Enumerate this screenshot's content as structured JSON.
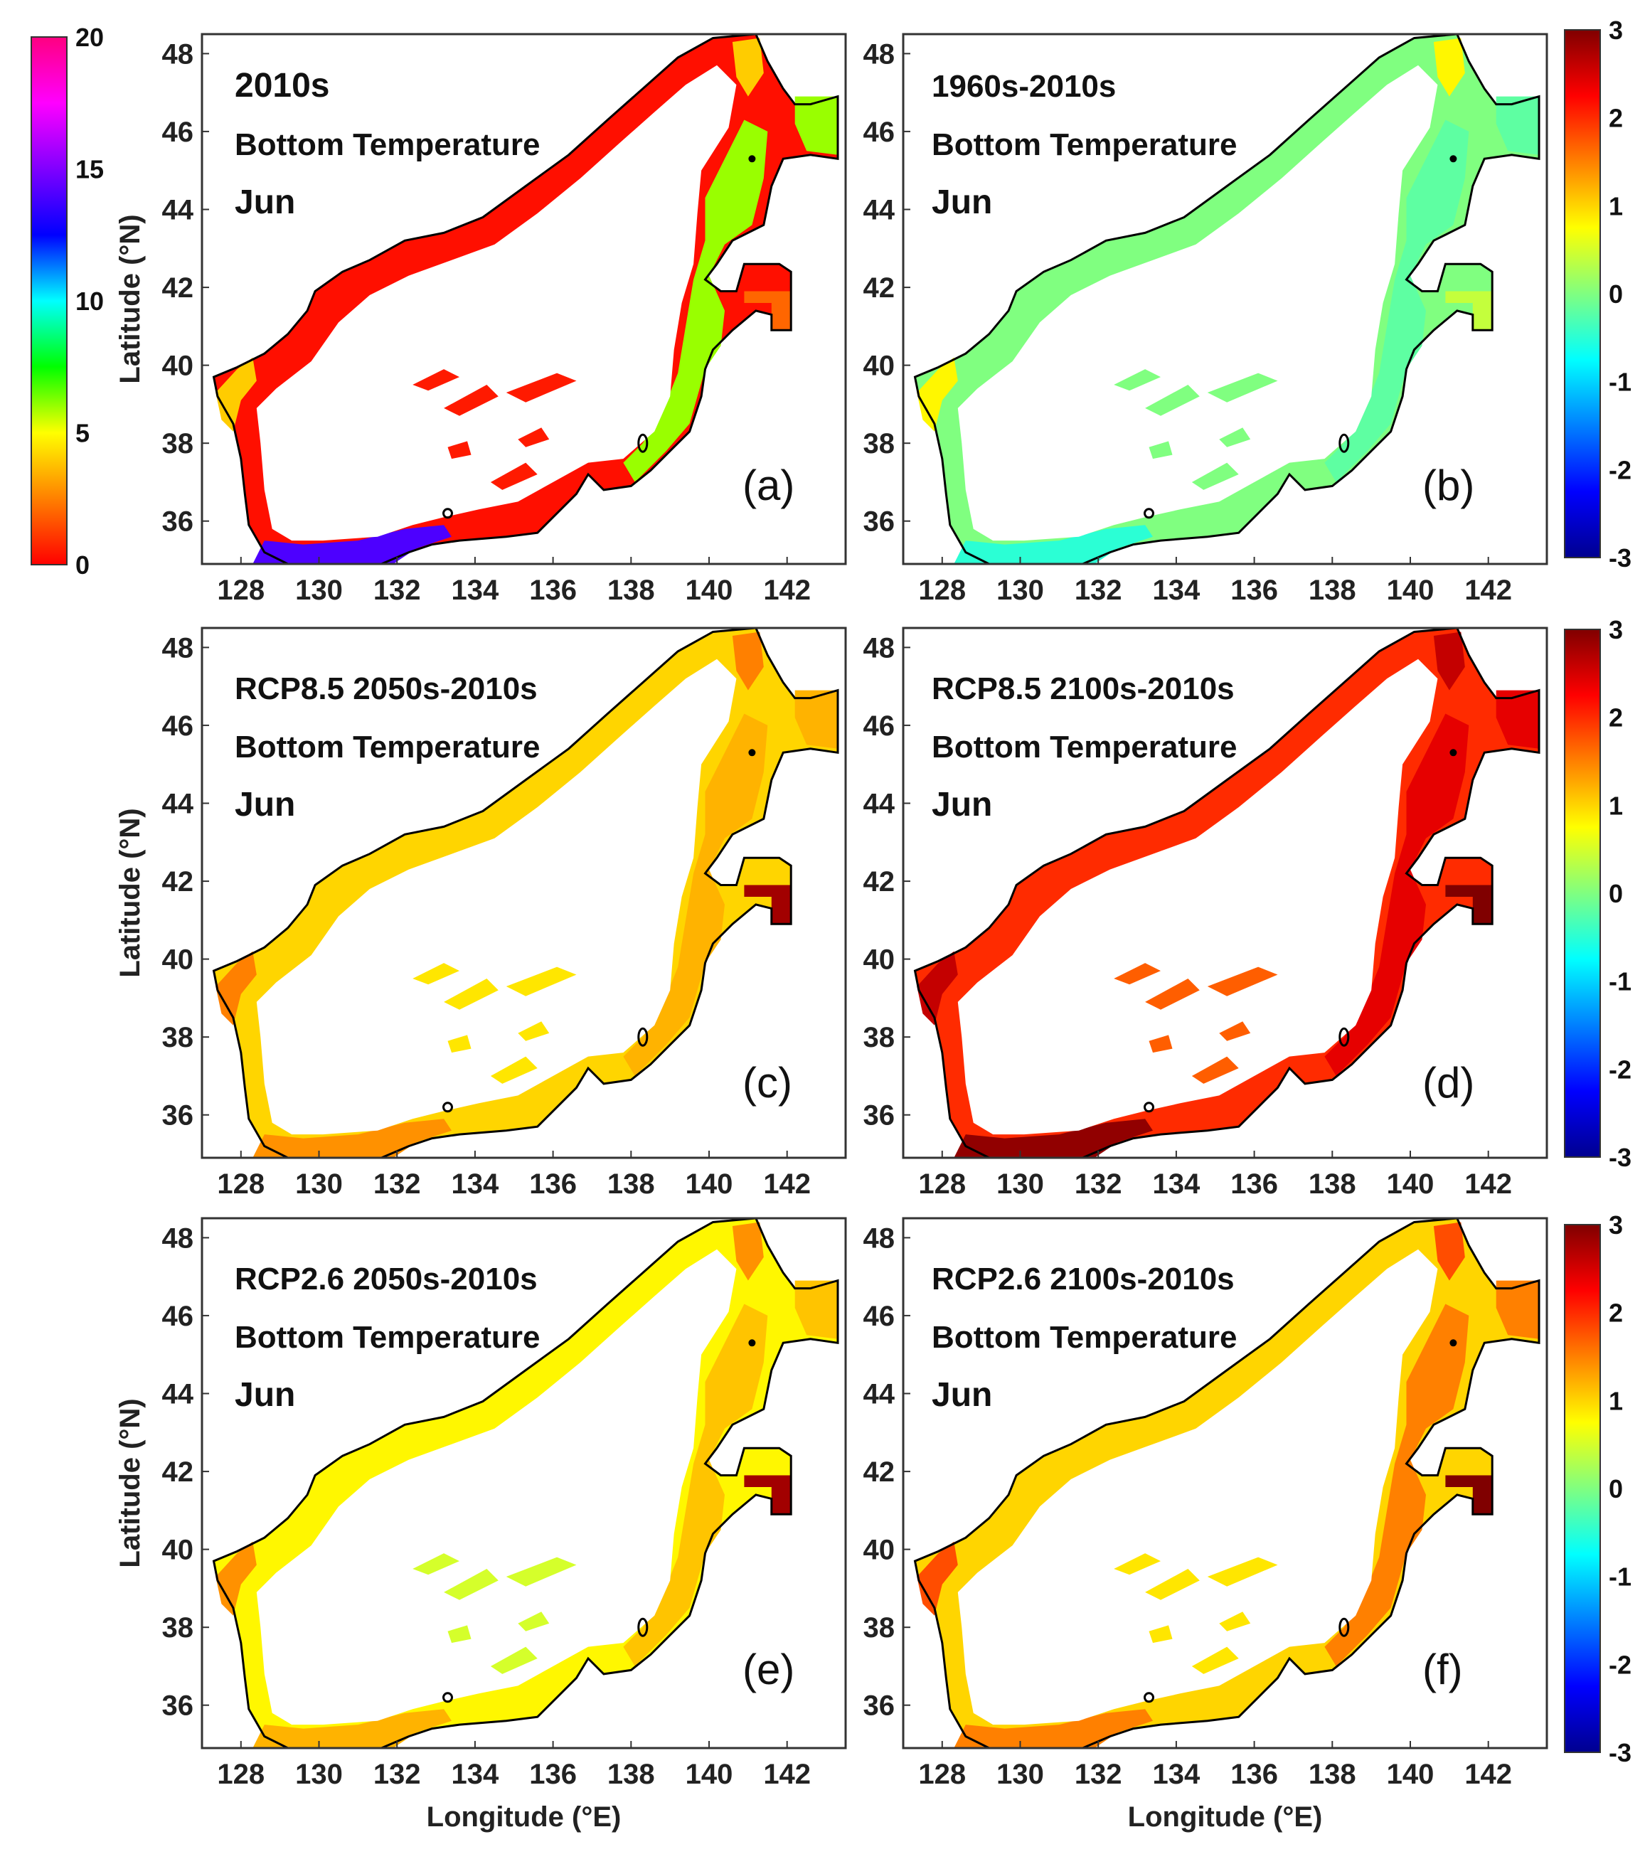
{
  "chart_data": {
    "type": "heatmap",
    "title": "",
    "xlabel": "Longitude (°E)",
    "ylabel": "Latitude (°N)",
    "xlim": [
      127.0,
      143.5
    ],
    "ylim": [
      34.9,
      48.5
    ],
    "xticks": [
      "128",
      "130",
      "132",
      "134",
      "136",
      "138",
      "140",
      "142"
    ],
    "yticks": [
      "36",
      "38",
      "40",
      "42",
      "44",
      "46",
      "48"
    ],
    "panels": [
      {
        "letter": "(a)",
        "lines": [
          "2010s",
          "Bottom Temperature",
          "Jun"
        ],
        "colormap": "abs",
        "shelf": 0.3,
        "south": 14,
        "coast": 4,
        "island": 2,
        "east": 6,
        "spots": 0.5
      },
      {
        "letter": "(b)",
        "lines": [
          "1960s-2010s",
          "Bottom Temperature",
          "Jun"
        ],
        "colormap": "diff",
        "shelf": 0.0,
        "south": -0.5,
        "coast": 0.8,
        "island": 0.4,
        "east": -0.2,
        "spots": 0.0
      },
      {
        "letter": "(c)",
        "lines": [
          "RCP8.5 2050s-2010s",
          "Bottom Temperature",
          "Jun"
        ],
        "colormap": "diff",
        "shelf": 1.0,
        "south": 1.4,
        "coast": 1.5,
        "island": 2.8,
        "east": 1.2,
        "spots": 0.9
      },
      {
        "letter": "(d)",
        "lines": [
          "RCP8.5 2100s-2010s",
          "Bottom Temperature",
          "Jun"
        ],
        "colormap": "diff",
        "shelf": 2.0,
        "south": 2.9,
        "coast": 2.6,
        "island": 3.0,
        "east": 2.4,
        "spots": 1.7
      },
      {
        "letter": "(e)",
        "lines": [
          "RCP2.6 2050s-2010s",
          "Bottom Temperature",
          "Jun"
        ],
        "colormap": "diff",
        "shelf": 0.8,
        "south": 1.2,
        "coast": 1.4,
        "island": 2.8,
        "east": 1.1,
        "spots": 0.5
      },
      {
        "letter": "(f)",
        "lines": [
          "RCP2.6 2100s-2010s",
          "Bottom Temperature",
          "Jun"
        ],
        "colormap": "diff",
        "shelf": 1.0,
        "south": 1.5,
        "coast": 1.8,
        "island": 3.0,
        "east": 1.5,
        "spots": 0.9
      }
    ],
    "colorbars": [
      {
        "name": "absolute",
        "min": 0,
        "max": 20,
        "ticks": [
          "0",
          "5",
          "10",
          "15",
          "20"
        ]
      },
      {
        "name": "difference",
        "min": -3,
        "max": 3,
        "ticks": [
          "-3",
          "-2",
          "-1",
          "0",
          "1",
          "2",
          "3"
        ]
      }
    ]
  },
  "colors": {
    "abs_scale": [
      "#ff0000",
      "#ff8000",
      "#ffff00",
      "#00ff00",
      "#00ffff",
      "#0000ff",
      "#8000ff",
      "#ff00ff",
      "#ff0080"
    ],
    "diff_scale": [
      "#00008f",
      "#0000ff",
      "#0080ff",
      "#00ffff",
      "#80ff80",
      "#ffff00",
      "#ff8000",
      "#ff0000",
      "#800000"
    ],
    "coastline": "#000000",
    "water": "#ffffff"
  }
}
